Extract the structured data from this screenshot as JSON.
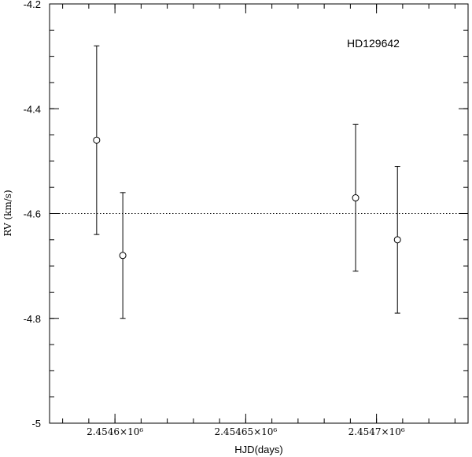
{
  "chart_data": {
    "type": "scatter",
    "title": "",
    "annotation": "HD129642",
    "xlabel": "HJD(days)",
    "ylabel": "RV (km/s)",
    "xlim": [
      2454575,
      2454735
    ],
    "ylim": [
      -5,
      -4.2
    ],
    "y_ticks": [
      -5,
      -4.8,
      -4.6,
      -4.4,
      -4.2
    ],
    "y_tick_labels": [
      "-5",
      "-4.8",
      "-4.6",
      "-4.4",
      "-4.2"
    ],
    "x_ticks": [
      2454600,
      2454650,
      2454700
    ],
    "x_tick_labels": [
      "2.4546×10⁶",
      "2.45465×10⁶",
      "2.4547×10⁶"
    ],
    "reference_line": {
      "y": -4.6,
      "style": "dotted"
    },
    "grid": false,
    "series": [
      {
        "points": [
          {
            "x": 2454593,
            "y": -4.46,
            "err": 0.18
          },
          {
            "x": 2454603,
            "y": -4.68,
            "err": 0.12
          },
          {
            "x": 2454692,
            "y": -4.57,
            "err": 0.14
          },
          {
            "x": 2454708,
            "y": -4.65,
            "err": 0.14
          }
        ]
      }
    ]
  }
}
